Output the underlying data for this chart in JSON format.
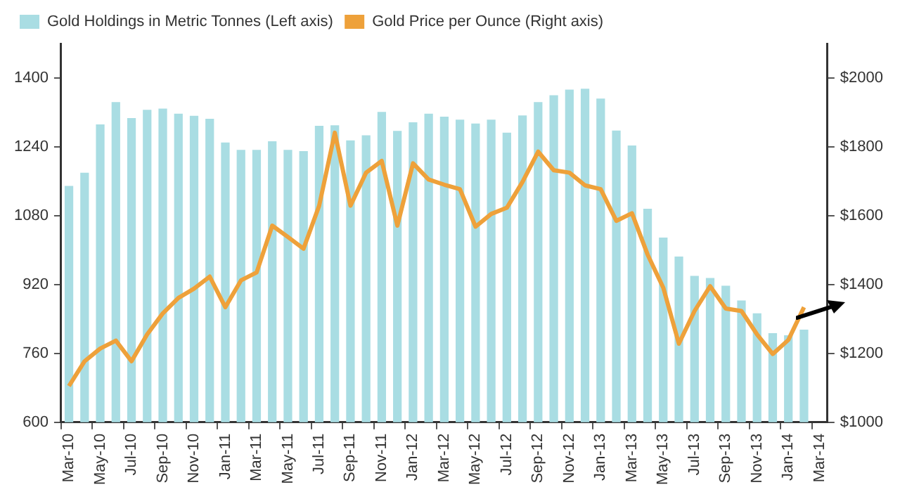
{
  "chart_data": {
    "type": "bar",
    "categories": [
      "Mar-10",
      null,
      "May-10",
      null,
      "Jul-10",
      null,
      "Sep-10",
      null,
      "Nov-10",
      null,
      "Jan-11",
      null,
      "Mar-11",
      null,
      "May-11",
      null,
      "Jul-11",
      null,
      "Sep-11",
      null,
      "Nov-11",
      null,
      "Jan-12",
      null,
      "Mar-12",
      null,
      "May-12",
      null,
      "Jul-12",
      null,
      "Sep-12",
      null,
      "Nov-12",
      null,
      "Jan-13",
      null,
      "Mar-13",
      null,
      "May-13",
      null,
      "Jul-13",
      null,
      "Sep-13",
      null,
      "Nov-13",
      null,
      "Jan-14",
      null,
      "Mar-14"
    ],
    "series": [
      {
        "name": "Gold Holdings in Metric Tonnes (Left axis)",
        "color": "#a9dde3",
        "values": [
          1149,
          1180,
          1292,
          1344,
          1307,
          1326,
          1329,
          1317,
          1312,
          1305,
          1250,
          1233,
          1233,
          1253,
          1233,
          1230,
          1289,
          1290,
          1255,
          1267,
          1321,
          1277,
          1297,
          1317,
          1310,
          1303,
          1294,
          1303,
          1273,
          1313,
          1344,
          1360,
          1373,
          1375,
          1352,
          1278,
          1243,
          1096,
          1029,
          985,
          940,
          935,
          917,
          883,
          853,
          807,
          802,
          815,
          null
        ]
      },
      {
        "name": "Gold Price per Ounce (Right axis)",
        "type": "line",
        "axis": "y2",
        "color": "#eea13a",
        "values": [
          1105,
          1177,
          1214,
          1237,
          1177,
          1255,
          1316,
          1361,
          1388,
          1423,
          1334,
          1412,
          1435,
          1571,
          1538,
          1504,
          1629,
          1841,
          1629,
          1725,
          1759,
          1571,
          1752,
          1705,
          1690,
          1677,
          1568,
          1605,
          1623,
          1698,
          1786,
          1732,
          1725,
          1688,
          1677,
          1585,
          1607,
          1487,
          1391,
          1228,
          1323,
          1395,
          1330,
          1323,
          1255,
          1198,
          1239,
          1334,
          null
        ]
      }
    ],
    "ylim": [
      600,
      1480
    ],
    "yticks": [
      600,
      760,
      920,
      1080,
      1240,
      1400
    ],
    "y2lim": [
      1000,
      2100
    ],
    "y2ticks": [
      {
        "value": 1000,
        "label": "$1000"
      },
      {
        "value": 1200,
        "label": "$1200"
      },
      {
        "value": 1400,
        "label": "$1400"
      },
      {
        "value": 1600,
        "label": "$1600"
      },
      {
        "value": 1800,
        "label": "$1800"
      },
      {
        "value": 2000,
        "label": "$2000"
      }
    ],
    "grid": false,
    "legend": "top left",
    "marker": "none",
    "line_style": "solid"
  }
}
